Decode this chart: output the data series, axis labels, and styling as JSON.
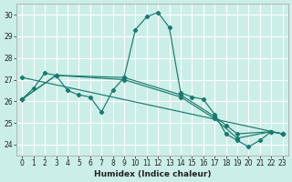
{
  "xlabel": "Humidex (Indice chaleur)",
  "bg_color": "#cceee8",
  "line_color": "#1a7a6e",
  "grid_color": "#ffffff",
  "xlim": [
    -0.5,
    23.5
  ],
  "ylim": [
    23.5,
    30.5
  ],
  "yticks": [
    24,
    25,
    26,
    27,
    28,
    29,
    30
  ],
  "xticks": [
    0,
    1,
    2,
    3,
    4,
    5,
    6,
    7,
    8,
    9,
    10,
    11,
    12,
    13,
    14,
    15,
    16,
    17,
    18,
    19,
    20,
    21,
    22,
    23
  ],
  "lines": [
    {
      "x": [
        0,
        1,
        2,
        3,
        4,
        5,
        6,
        7,
        8,
        9,
        10,
        11,
        12,
        13,
        14,
        15,
        16,
        17,
        18,
        19,
        20,
        21,
        22,
        23
      ],
      "y": [
        26.1,
        26.6,
        27.3,
        27.2,
        26.5,
        26.3,
        26.2,
        25.5,
        26.5,
        27.1,
        29.3,
        29.9,
        30.1,
        29.4,
        26.4,
        26.2,
        26.1,
        25.4,
        24.5,
        24.2,
        23.9,
        24.2,
        24.6,
        24.5
      ]
    },
    {
      "x": [
        0,
        3,
        9,
        14,
        17,
        18,
        19,
        22,
        23
      ],
      "y": [
        26.1,
        27.2,
        27.1,
        26.3,
        25.3,
        24.9,
        24.5,
        24.6,
        24.5
      ]
    },
    {
      "x": [
        0,
        3,
        9,
        14,
        17,
        19,
        22,
        23
      ],
      "y": [
        26.1,
        27.2,
        27.0,
        26.2,
        25.2,
        24.3,
        24.6,
        24.5
      ]
    },
    {
      "x": [
        0,
        23
      ],
      "y": [
        27.1,
        24.5
      ]
    }
  ]
}
